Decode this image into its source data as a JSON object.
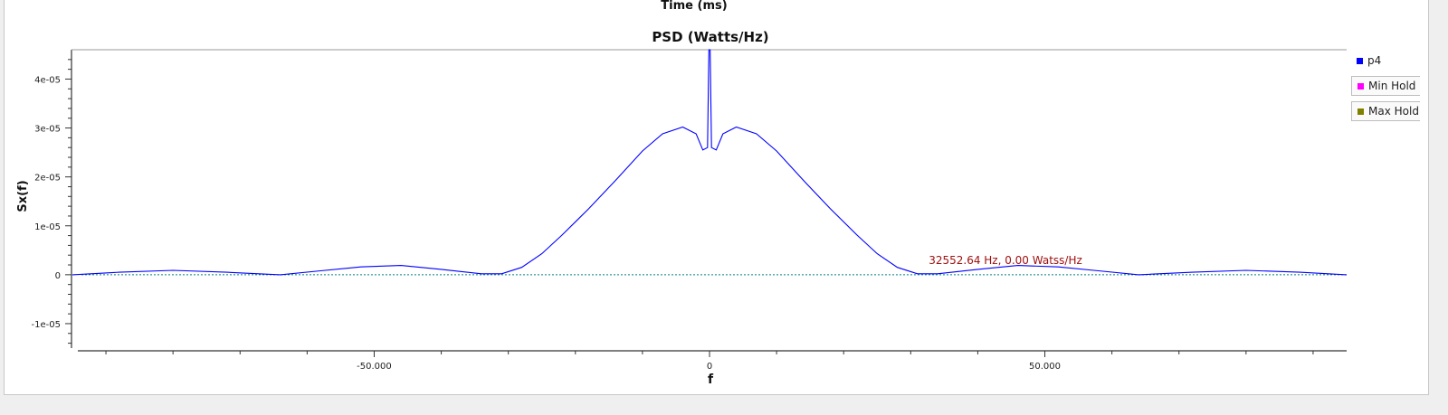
{
  "header": {
    "previous_plot_xlabel": "Time (ms)"
  },
  "chart_data": {
    "type": "line",
    "title": "PSD (Watts/Hz)",
    "xlabel": "f",
    "ylabel": "Sx(f)",
    "xlim": [
      -95,
      95
    ],
    "ylim": [
      -1.5e-05,
      4.6e-05
    ],
    "x_ticks": [
      -50,
      0,
      50
    ],
    "x_tick_labels": [
      "-50.000",
      "0",
      "50.000"
    ],
    "y_ticks": [
      4e-05,
      3e-05,
      2e-05,
      1e-05,
      0,
      -1e-05
    ],
    "y_tick_labels": [
      "4e-05",
      "3e-05",
      "2e-05",
      "1e-05",
      "0",
      "-1e-05"
    ],
    "grid": false,
    "legend_position": "right",
    "series": [
      {
        "name": "p4",
        "color": "#0000ff",
        "x": [
          -95,
          -88,
          -80,
          -72,
          -64,
          -58,
          -52,
          -46,
          -40,
          -34,
          -31,
          -28,
          -25,
          -22,
          -18,
          -14,
          -10,
          -7,
          -4,
          -2,
          -1,
          -0.3,
          -0.1,
          0,
          0.1,
          0.3,
          1,
          2,
          4,
          7,
          10,
          14,
          18,
          22,
          25,
          28,
          31,
          34,
          40,
          46,
          52,
          58,
          64,
          72,
          80,
          88,
          95
        ],
        "y": [
          0,
          5e-07,
          9e-07,
          5e-07,
          0,
          8e-07,
          1.6e-06,
          1.9e-06,
          1.1e-06,
          2e-07,
          2e-07,
          1.5e-06,
          4.3e-06,
          8.1e-06,
          1.35e-05,
          1.93e-05,
          2.53e-05,
          2.88e-05,
          3.02e-05,
          2.88e-05,
          2.55e-05,
          2.6e-05,
          4.7e-05,
          4.7e-05,
          4.7e-05,
          2.6e-05,
          2.55e-05,
          2.88e-05,
          3.02e-05,
          2.88e-05,
          2.53e-05,
          1.93e-05,
          1.35e-05,
          8.1e-06,
          4.3e-06,
          1.5e-06,
          2e-07,
          2e-07,
          1.1e-06,
          1.9e-06,
          1.6e-06,
          8e-07,
          0,
          5e-07,
          9e-07,
          5e-07,
          0
        ]
      }
    ],
    "legend": [
      {
        "name": "p4",
        "color": "#0000ff"
      },
      {
        "name": "Min Hold",
        "color": "#ff00ff"
      },
      {
        "name": "Max Hold",
        "color": "#808000"
      }
    ],
    "zero_line_color": "#008080",
    "annotations": [
      {
        "text": "32552.64 Hz, 0.00 Watss/Hz",
        "color": "#a01010",
        "x": 32.55,
        "y": 0
      }
    ]
  }
}
